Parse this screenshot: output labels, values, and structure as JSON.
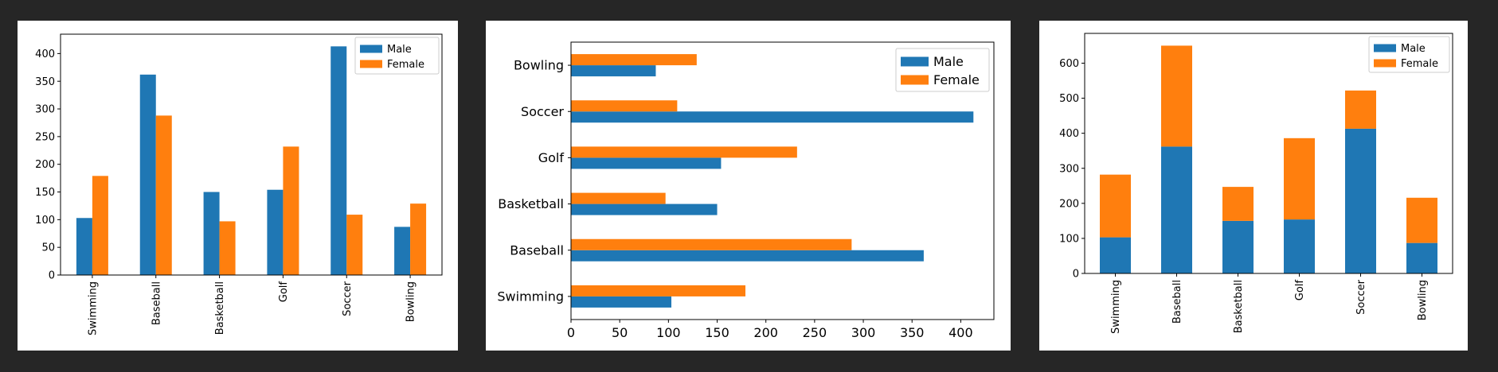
{
  "colors": {
    "male": "#1f77b4",
    "female": "#ff7f0e",
    "background": "#262626"
  },
  "chart_data": [
    {
      "type": "bar",
      "orientation": "vertical",
      "stacked": false,
      "categories": [
        "Swimming",
        "Baseball",
        "Basketball",
        "Golf",
        "Soccer",
        "Bowling"
      ],
      "series": [
        {
          "name": "Male",
          "values": [
            103,
            362,
            150,
            154,
            413,
            87
          ]
        },
        {
          "name": "Female",
          "values": [
            179,
            288,
            97,
            232,
            109,
            129
          ]
        }
      ],
      "ylim": [
        0,
        435
      ],
      "yticks": [
        0,
        50,
        100,
        150,
        200,
        250,
        300,
        350,
        400
      ],
      "legend": "top-right",
      "grid": false,
      "category_label_rotation": "vertical"
    },
    {
      "type": "bar",
      "orientation": "horizontal",
      "stacked": false,
      "categories": [
        "Swimming",
        "Baseball",
        "Basketball",
        "Golf",
        "Soccer",
        "Bowling"
      ],
      "series": [
        {
          "name": "Male",
          "values": [
            103,
            362,
            150,
            154,
            413,
            87
          ]
        },
        {
          "name": "Female",
          "values": [
            179,
            288,
            97,
            232,
            109,
            129
          ]
        }
      ],
      "xlim": [
        0,
        434
      ],
      "xticks": [
        0,
        50,
        100,
        150,
        200,
        250,
        300,
        350,
        400
      ],
      "legend": "top-right",
      "grid": false
    },
    {
      "type": "bar",
      "orientation": "vertical",
      "stacked": true,
      "categories": [
        "Swimming",
        "Baseball",
        "Basketball",
        "Golf",
        "Soccer",
        "Bowling"
      ],
      "series": [
        {
          "name": "Male",
          "values": [
            103,
            362,
            150,
            154,
            413,
            87
          ]
        },
        {
          "name": "Female",
          "values": [
            179,
            288,
            97,
            232,
            109,
            129
          ]
        }
      ],
      "ylim": [
        0,
        685
      ],
      "yticks": [
        0,
        100,
        200,
        300,
        400,
        500,
        600
      ],
      "legend": "top-right",
      "grid": false,
      "category_label_rotation": "vertical"
    }
  ]
}
